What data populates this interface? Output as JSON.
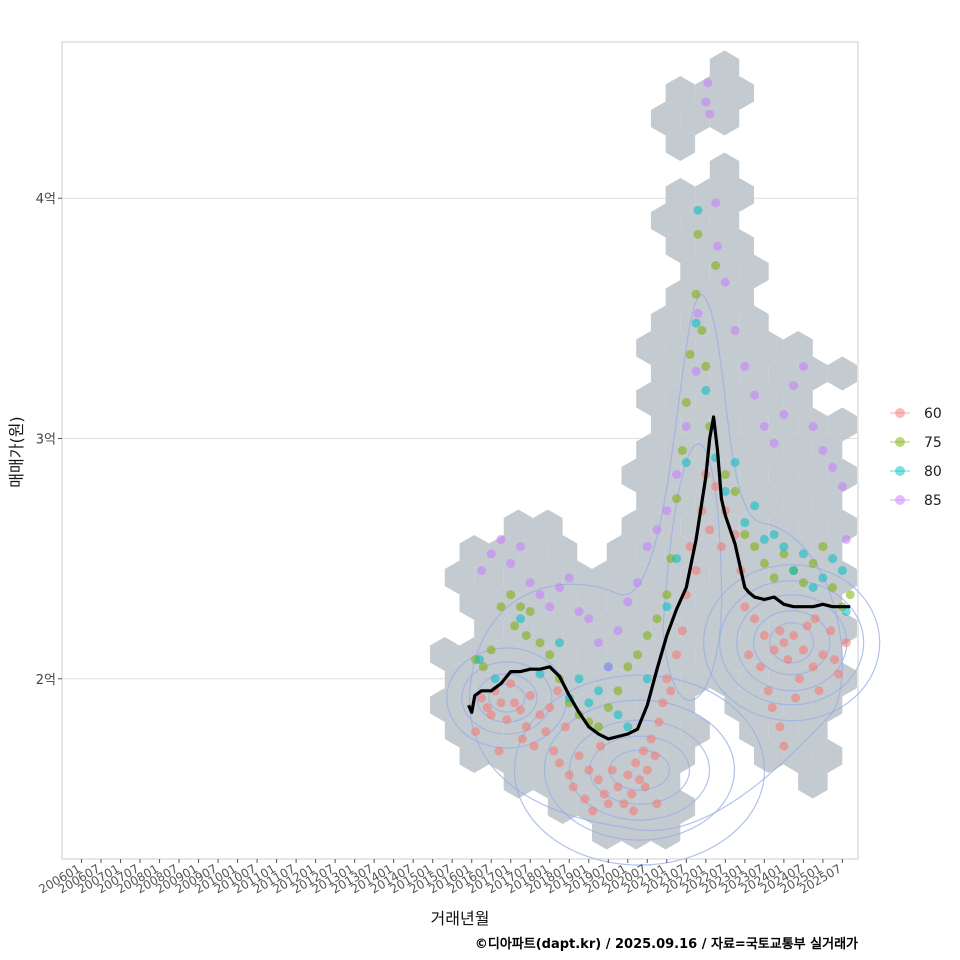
{
  "chart_data": {
    "type": "scatter",
    "title": "",
    "xlabel": "거래년월",
    "ylabel": "매매가(원)",
    "x_tick_labels": [
      "200601",
      "200607",
      "200701",
      "200707",
      "200801",
      "200807",
      "200901",
      "200907",
      "201001",
      "201007",
      "201101",
      "201107",
      "201201",
      "201207",
      "201301",
      "201307",
      "201401",
      "201407",
      "201501",
      "201507",
      "201601",
      "201607",
      "201701",
      "201707",
      "201801",
      "201807",
      "201901",
      "201907",
      "202001",
      "202007",
      "202101",
      "202107",
      "202201",
      "202207",
      "202301",
      "202307",
      "202401",
      "202407",
      "202501",
      "202507"
    ],
    "y_tick_labels": [
      {
        "value": 2.0,
        "label": "2억"
      },
      {
        "value": 3.0,
        "label": "3억"
      },
      {
        "value": 4.0,
        "label": "4억"
      }
    ],
    "xlim": [
      2005.5,
      2025.9
    ],
    "ylim": [
      1.25,
      4.65
    ],
    "y_unit": "억원",
    "legend": {
      "position": "right",
      "entries": [
        {
          "label": "60",
          "color": "#F8766D"
        },
        {
          "label": "75",
          "color": "#7CAE00"
        },
        {
          "label": "80",
          "color": "#00BFC4"
        },
        {
          "label": "85",
          "color": "#C77CFF"
        }
      ]
    },
    "hexbin_color": "#BCC4CB",
    "contour_color": "#9AAEE6",
    "trend_line": {
      "color": "#000000",
      "x": [
        2015.92,
        2016.0,
        2016.08,
        2016.25,
        2016.5,
        2016.75,
        2017.0,
        2017.25,
        2017.5,
        2017.75,
        2018.0,
        2018.25,
        2018.5,
        2018.75,
        2019.0,
        2019.25,
        2019.5,
        2019.75,
        2020.0,
        2020.25,
        2020.5,
        2020.75,
        2021.0,
        2021.25,
        2021.5,
        2021.75,
        2022.0,
        2022.1,
        2022.2,
        2022.3,
        2022.4,
        2022.5,
        2022.75,
        2023.0,
        2023.1,
        2023.25,
        2023.5,
        2023.75,
        2024.0,
        2024.25,
        2024.5,
        2024.75,
        2025.0,
        2025.25,
        2025.5,
        2025.7
      ],
      "y": [
        1.89,
        1.86,
        1.93,
        1.95,
        1.95,
        1.98,
        2.03,
        2.03,
        2.04,
        2.04,
        2.05,
        2.01,
        1.93,
        1.86,
        1.8,
        1.77,
        1.75,
        1.76,
        1.77,
        1.79,
        1.89,
        2.04,
        2.18,
        2.29,
        2.38,
        2.58,
        2.84,
        3.0,
        3.09,
        2.95,
        2.75,
        2.68,
        2.56,
        2.38,
        2.36,
        2.34,
        2.33,
        2.34,
        2.31,
        2.3,
        2.3,
        2.3,
        2.31,
        2.3,
        2.3,
        2.3
      ]
    },
    "points": {
      "60": [
        [
          2016.25,
          1.92
        ],
        [
          2016.4,
          1.88
        ],
        [
          2016.5,
          1.85
        ],
        [
          2016.6,
          1.95
        ],
        [
          2016.75,
          1.9
        ],
        [
          2016.9,
          1.83
        ],
        [
          2017.0,
          1.98
        ],
        [
          2017.1,
          1.9
        ],
        [
          2017.25,
          1.87
        ],
        [
          2017.4,
          1.8
        ],
        [
          2017.5,
          1.93
        ],
        [
          2017.6,
          1.72
        ],
        [
          2017.75,
          1.85
        ],
        [
          2017.9,
          1.78
        ],
        [
          2018.0,
          1.88
        ],
        [
          2018.1,
          1.7
        ],
        [
          2018.25,
          1.65
        ],
        [
          2018.4,
          1.8
        ],
        [
          2018.5,
          1.6
        ],
        [
          2018.6,
          1.55
        ],
        [
          2018.75,
          1.68
        ],
        [
          2018.9,
          1.5
        ],
        [
          2019.0,
          1.62
        ],
        [
          2019.1,
          1.45
        ],
        [
          2019.25,
          1.58
        ],
        [
          2019.4,
          1.52
        ],
        [
          2019.5,
          1.48
        ],
        [
          2019.6,
          1.62
        ],
        [
          2019.75,
          1.55
        ],
        [
          2019.9,
          1.48
        ],
        [
          2020.0,
          1.6
        ],
        [
          2020.1,
          1.52
        ],
        [
          2020.2,
          1.65
        ],
        [
          2020.3,
          1.58
        ],
        [
          2020.4,
          1.7
        ],
        [
          2020.5,
          1.62
        ],
        [
          2020.6,
          1.75
        ],
        [
          2020.7,
          1.68
        ],
        [
          2020.8,
          1.82
        ],
        [
          2020.9,
          1.9
        ],
        [
          2021.0,
          2.0
        ],
        [
          2021.1,
          1.95
        ],
        [
          2021.25,
          2.1
        ],
        [
          2021.4,
          2.2
        ],
        [
          2021.5,
          2.35
        ],
        [
          2021.6,
          2.55
        ],
        [
          2021.75,
          2.45
        ],
        [
          2021.9,
          2.7
        ],
        [
          2022.0,
          2.85
        ],
        [
          2022.1,
          2.62
        ],
        [
          2022.25,
          2.8
        ],
        [
          2022.4,
          2.55
        ],
        [
          2022.5,
          2.7
        ],
        [
          2022.75,
          2.6
        ],
        [
          2022.9,
          2.45
        ],
        [
          2023.0,
          2.3
        ],
        [
          2023.1,
          2.1
        ],
        [
          2023.25,
          2.25
        ],
        [
          2023.4,
          2.05
        ],
        [
          2023.5,
          2.18
        ],
        [
          2023.6,
          1.95
        ],
        [
          2023.75,
          2.12
        ],
        [
          2023.9,
          2.2
        ],
        [
          2024.0,
          2.15
        ],
        [
          2024.1,
          2.08
        ],
        [
          2024.25,
          2.18
        ],
        [
          2024.4,
          2.0
        ],
        [
          2024.5,
          2.12
        ],
        [
          2024.6,
          2.22
        ],
        [
          2024.75,
          2.05
        ],
        [
          2024.9,
          1.95
        ],
        [
          2025.0,
          2.1
        ],
        [
          2025.2,
          2.2
        ],
        [
          2025.4,
          2.02
        ],
        [
          2025.6,
          2.15
        ],
        [
          2023.9,
          1.8
        ],
        [
          2024.0,
          1.72
        ],
        [
          2023.7,
          1.88
        ],
        [
          2024.3,
          1.92
        ],
        [
          2024.8,
          2.25
        ],
        [
          2025.3,
          2.08
        ],
        [
          2016.1,
          1.78
        ],
        [
          2016.7,
          1.7
        ],
        [
          2017.3,
          1.75
        ],
        [
          2018.2,
          1.95
        ],
        [
          2019.3,
          1.72
        ],
        [
          2020.15,
          1.45
        ],
        [
          2020.45,
          1.55
        ],
        [
          2020.75,
          1.48
        ]
      ],
      "75": [
        [
          2016.1,
          2.08
        ],
        [
          2016.3,
          2.05
        ],
        [
          2016.5,
          2.12
        ],
        [
          2016.75,
          2.3
        ],
        [
          2017.0,
          2.35
        ],
        [
          2017.1,
          2.22
        ],
        [
          2017.25,
          2.3
        ],
        [
          2017.4,
          2.18
        ],
        [
          2017.5,
          2.28
        ],
        [
          2017.75,
          2.15
        ],
        [
          2018.0,
          2.1
        ],
        [
          2018.25,
          2.0
        ],
        [
          2018.5,
          1.9
        ],
        [
          2018.75,
          1.85
        ],
        [
          2019.0,
          1.82
        ],
        [
          2019.25,
          1.8
        ],
        [
          2019.5,
          1.88
        ],
        [
          2019.75,
          1.95
        ],
        [
          2020.0,
          2.05
        ],
        [
          2020.25,
          2.1
        ],
        [
          2020.5,
          2.18
        ],
        [
          2020.75,
          2.25
        ],
        [
          2021.0,
          2.35
        ],
        [
          2021.1,
          2.5
        ],
        [
          2021.25,
          2.75
        ],
        [
          2021.4,
          2.95
        ],
        [
          2021.5,
          3.15
        ],
        [
          2021.6,
          3.35
        ],
        [
          2021.75,
          3.6
        ],
        [
          2021.8,
          3.85
        ],
        [
          2021.9,
          3.45
        ],
        [
          2022.0,
          3.3
        ],
        [
          2022.1,
          3.05
        ],
        [
          2022.25,
          3.72
        ],
        [
          2022.5,
          2.85
        ],
        [
          2022.75,
          2.78
        ],
        [
          2023.0,
          2.6
        ],
        [
          2023.25,
          2.55
        ],
        [
          2023.5,
          2.48
        ],
        [
          2023.75,
          2.42
        ],
        [
          2024.0,
          2.52
        ],
        [
          2024.25,
          2.45
        ],
        [
          2024.5,
          2.4
        ],
        [
          2024.75,
          2.48
        ],
        [
          2025.0,
          2.55
        ],
        [
          2025.25,
          2.38
        ],
        [
          2025.5,
          2.3
        ],
        [
          2025.7,
          2.35
        ]
      ],
      "80": [
        [
          2016.2,
          2.08
        ],
        [
          2016.6,
          2.0
        ],
        [
          2017.25,
          2.25
        ],
        [
          2017.75,
          2.02
        ],
        [
          2018.25,
          2.15
        ],
        [
          2018.5,
          1.92
        ],
        [
          2018.75,
          2.0
        ],
        [
          2019.0,
          1.9
        ],
        [
          2019.25,
          1.95
        ],
        [
          2019.5,
          2.05
        ],
        [
          2019.75,
          1.85
        ],
        [
          2020.0,
          1.8
        ],
        [
          2020.5,
          2.0
        ],
        [
          2021.0,
          2.3
        ],
        [
          2021.25,
          2.5
        ],
        [
          2021.5,
          2.9
        ],
        [
          2021.75,
          3.48
        ],
        [
          2021.8,
          3.95
        ],
        [
          2022.0,
          3.2
        ],
        [
          2022.25,
          2.92
        ],
        [
          2022.5,
          2.78
        ],
        [
          2022.75,
          2.9
        ],
        [
          2023.0,
          2.65
        ],
        [
          2023.25,
          2.72
        ],
        [
          2023.5,
          2.58
        ],
        [
          2023.75,
          2.6
        ],
        [
          2024.0,
          2.55
        ],
        [
          2024.25,
          2.45
        ],
        [
          2024.5,
          2.52
        ],
        [
          2024.75,
          2.38
        ],
        [
          2025.0,
          2.42
        ],
        [
          2025.25,
          2.5
        ],
        [
          2025.5,
          2.45
        ],
        [
          2025.6,
          2.28
        ]
      ],
      "85": [
        [
          2016.25,
          2.45
        ],
        [
          2016.5,
          2.52
        ],
        [
          2016.75,
          2.58
        ],
        [
          2017.0,
          2.48
        ],
        [
          2017.25,
          2.55
        ],
        [
          2017.5,
          2.4
        ],
        [
          2017.75,
          2.35
        ],
        [
          2018.0,
          2.3
        ],
        [
          2018.25,
          2.38
        ],
        [
          2018.5,
          2.42
        ],
        [
          2018.75,
          2.28
        ],
        [
          2019.0,
          2.25
        ],
        [
          2019.25,
          2.15
        ],
        [
          2019.5,
          2.05
        ],
        [
          2019.75,
          2.2
        ],
        [
          2020.0,
          2.32
        ],
        [
          2020.25,
          2.4
        ],
        [
          2020.5,
          2.55
        ],
        [
          2020.75,
          2.62
        ],
        [
          2021.0,
          2.7
        ],
        [
          2021.25,
          2.85
        ],
        [
          2021.5,
          3.05
        ],
        [
          2021.75,
          3.28
        ],
        [
          2021.8,
          3.52
        ],
        [
          2022.0,
          4.4
        ],
        [
          2022.05,
          4.48
        ],
        [
          2022.1,
          4.35
        ],
        [
          2022.25,
          3.98
        ],
        [
          2022.3,
          3.8
        ],
        [
          2022.5,
          3.65
        ],
        [
          2022.75,
          3.45
        ],
        [
          2023.0,
          3.3
        ],
        [
          2023.25,
          3.18
        ],
        [
          2023.5,
          3.05
        ],
        [
          2023.75,
          2.98
        ],
        [
          2024.0,
          3.1
        ],
        [
          2024.25,
          3.22
        ],
        [
          2024.5,
          3.3
        ],
        [
          2024.75,
          3.05
        ],
        [
          2025.0,
          2.95
        ],
        [
          2025.25,
          2.88
        ],
        [
          2025.5,
          2.8
        ],
        [
          2025.6,
          2.58
        ]
      ]
    }
  },
  "footer": {
    "credit": "©디아파트(dapt.kr) / 2025.09.16 / 자료=국토교통부 실거래가"
  }
}
